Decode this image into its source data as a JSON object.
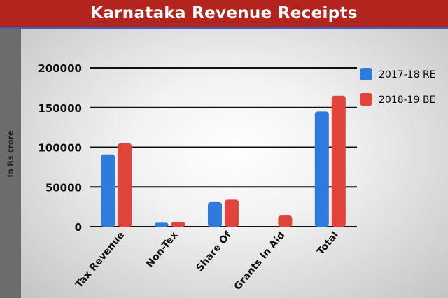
{
  "header": {
    "title": "Karnataka Revenue Receipts"
  },
  "chart_data": {
    "type": "bar",
    "title": "Karnataka Revenue Receipts",
    "xlabel": "",
    "ylabel": "In Rs crore",
    "categories": [
      "Tax Revenue",
      "Non-Tex",
      "Share Of",
      "Grants In Aid",
      "Total"
    ],
    "series": [
      {
        "name": "2017-18 RE",
        "color": "#2f7bdc",
        "values": [
          91000,
          5000,
          31000,
          0,
          145000
        ]
      },
      {
        "name": "2018-19 BE",
        "color": "#e0443b",
        "values": [
          105000,
          6000,
          34000,
          14000,
          165000
        ]
      }
    ],
    "ylim": [
      0,
      200000
    ],
    "yticks": [
      "0",
      "50000",
      "100000",
      "150000",
      "200000"
    ],
    "grid": true,
    "legend_position": "top-right"
  }
}
